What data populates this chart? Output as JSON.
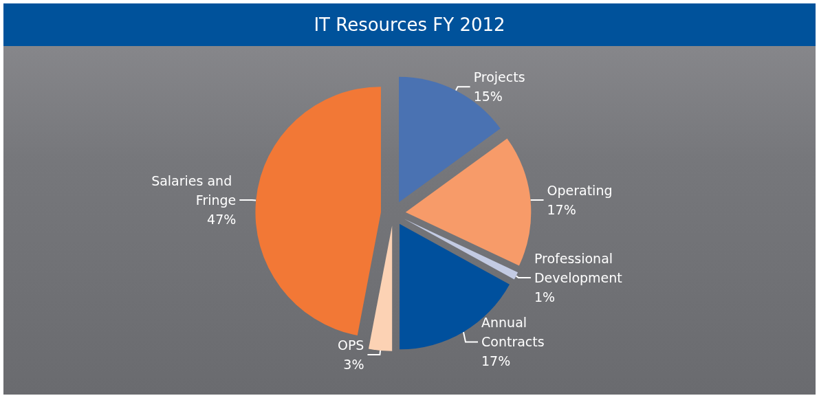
{
  "chart_data": {
    "type": "pie",
    "title": "IT Resources FY 2012",
    "categories": [
      "Projects",
      "Operating",
      "Professional Development",
      "Annual Contracts",
      "OPS",
      "Salaries and Fringe"
    ],
    "values": [
      15,
      17,
      1,
      17,
      3,
      47
    ],
    "value_labels": [
      "15%",
      "17%",
      "1%",
      "17%",
      "3%",
      "47%"
    ],
    "colors": [
      "#4a72b2",
      "#f79b69",
      "#c3cbe3",
      "#00509d",
      "#fcd2b4",
      "#f27836"
    ],
    "legend": false
  }
}
